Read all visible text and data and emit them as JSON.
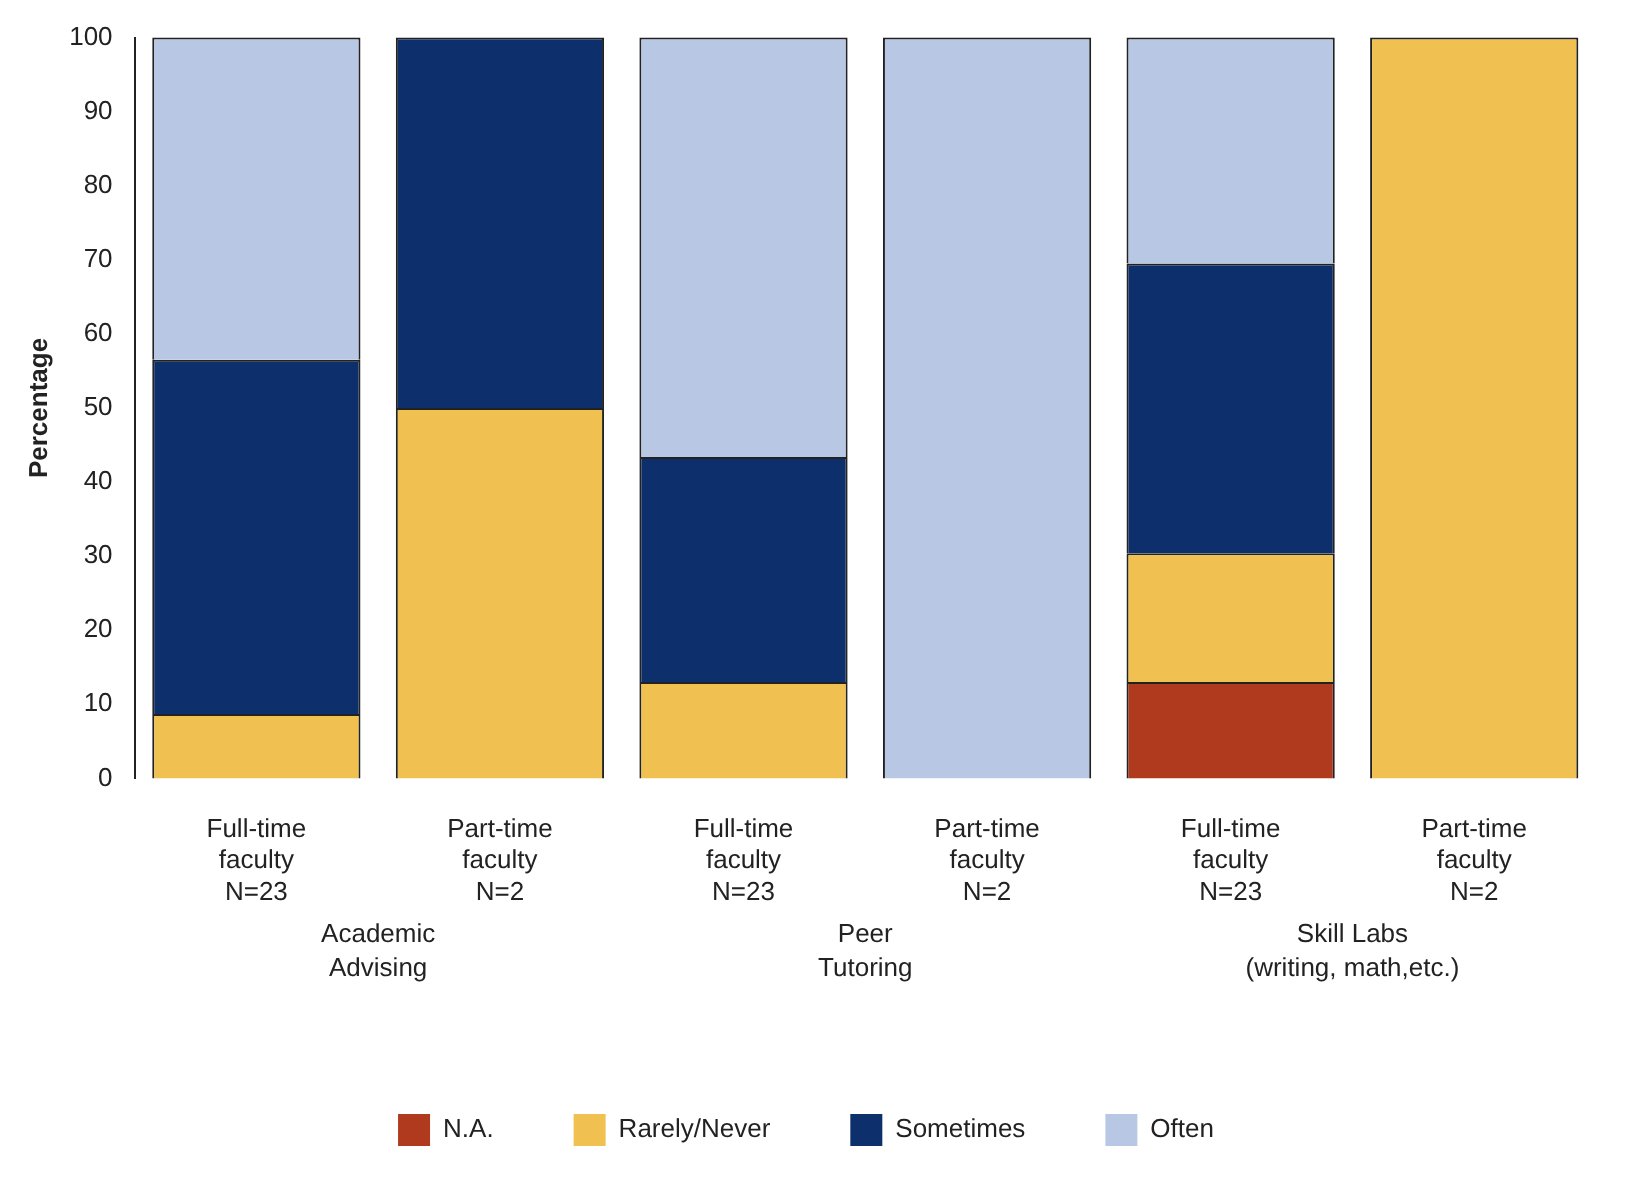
{
  "chart_data": {
    "type": "bar",
    "ylabel": "Percentage",
    "stacked": true,
    "categories": [
      "Full-time faculty N=23",
      "Part-time faculty N=2",
      "Full-time faculty N=23",
      "Part-time faculty N=2",
      "Full-time faculty N=23",
      "Part-time faculty N=2"
    ],
    "series": [
      {
        "name": "N.A.",
        "color": "#b03a1e",
        "values": [
          0,
          0,
          0,
          0,
          13,
          0
        ]
      },
      {
        "name": "Rarely/Never",
        "color": "#f0c050",
        "values": [
          8.7,
          50,
          13,
          0,
          17.4,
          100
        ]
      },
      {
        "name": "Sometimes",
        "color": "#0d2f6b",
        "values": [
          47.8,
          50,
          30.4,
          0,
          39.1,
          0
        ]
      },
      {
        "name": "Often",
        "color": "#b8c8e4",
        "values": [
          43.5,
          0,
          56.6,
          100,
          30.5,
          0
        ]
      }
    ],
    "ylim": [
      0,
      100
    ],
    "yticks": [
      0,
      10,
      20,
      30,
      40,
      50,
      60,
      70,
      80,
      90,
      100
    ],
    "grid": false,
    "legend": "bottom",
    "annotations": [
      "Academic\nAdvising",
      "Peer\nTutoring",
      "Skill Labs\n(writing, math,etc.)"
    ]
  }
}
